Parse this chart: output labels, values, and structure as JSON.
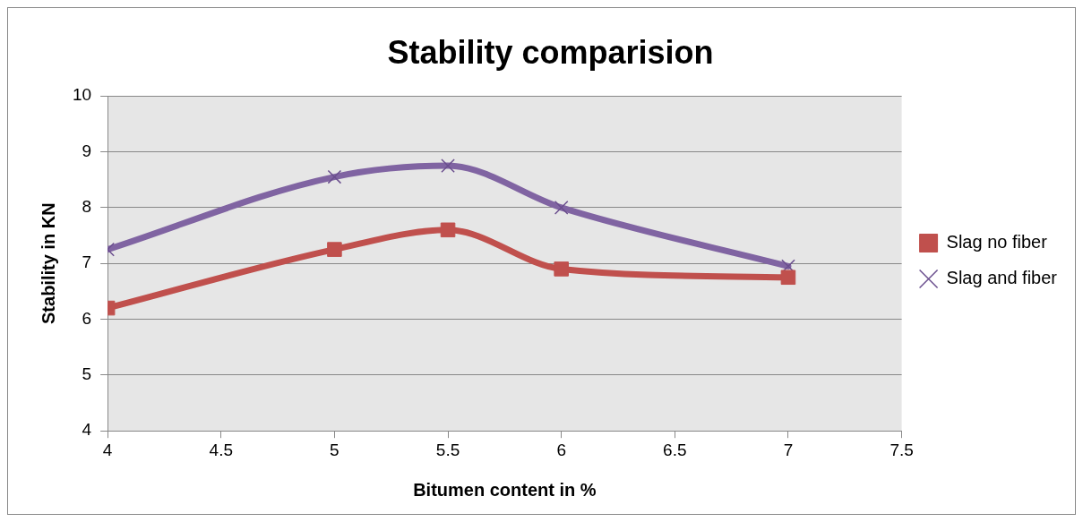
{
  "chart_data": {
    "type": "line",
    "title": "Stability comparision",
    "xlabel": "Bitumen content in %",
    "ylabel": "Stability in KN",
    "xlim": [
      4,
      7.5
    ],
    "xticks": [
      4,
      4.5,
      5,
      5.5,
      6,
      6.5,
      7,
      7.5
    ],
    "ylim": [
      4,
      10
    ],
    "yticks": [
      4,
      5,
      6,
      7,
      8,
      9,
      10
    ],
    "grid": "y",
    "legend": "right",
    "series": [
      {
        "name": "Slag no fiber",
        "color": "#c0504d",
        "marker": "square",
        "x": [
          4,
          5,
          5.5,
          6,
          7
        ],
        "values": [
          6.2,
          7.25,
          7.6,
          6.9,
          6.75
        ]
      },
      {
        "name": "Slag and fiber",
        "color": "#8064a2",
        "marker": "cross",
        "x": [
          4,
          5,
          5.5,
          6,
          7
        ],
        "values": [
          7.25,
          8.55,
          8.75,
          8.0,
          6.95
        ]
      }
    ]
  }
}
